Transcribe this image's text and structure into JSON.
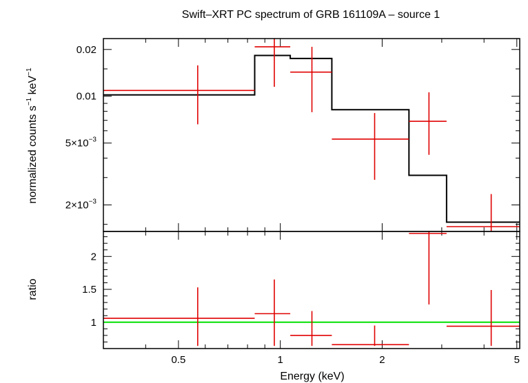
{
  "chart_data": {
    "type": "scatter",
    "title": "Swift–XRT PC spectrum of GRB 161109A – source 1",
    "xlabel": "Energy (keV)",
    "x_scale": "log",
    "x_range": [
      0.3,
      5.1
    ],
    "x_ticks": [
      {
        "value": 0.5,
        "label": "0.5"
      },
      {
        "value": 1,
        "label": "1"
      },
      {
        "value": 2,
        "label": "2"
      },
      {
        "value": 5,
        "label": "5"
      }
    ],
    "panels": [
      {
        "name": "spectrum",
        "ylabel_main": "normalized counts s",
        "ylabel_sup1": "−1",
        "ylabel_mid": " keV",
        "ylabel_sup2": "−1",
        "y_scale": "log",
        "y_range": [
          0.00135,
          0.0235
        ],
        "y_ticks": [
          {
            "value": 0.02,
            "label": "0.02"
          },
          {
            "value": 0.01,
            "label": "0.01"
          },
          {
            "value": 0.005,
            "base": "5×10",
            "exp": "−3"
          },
          {
            "value": 0.002,
            "base": "2×10",
            "exp": "−3"
          }
        ],
        "data": [
          {
            "xlo": 0.3,
            "xhi": 0.84,
            "x": 0.57,
            "y": 0.0109,
            "ylo": 0.0066,
            "yhi": 0.0158
          },
          {
            "xlo": 0.84,
            "xhi": 1.07,
            "x": 0.96,
            "y": 0.0208,
            "ylo": 0.0115,
            "yhi": 0.024
          },
          {
            "xlo": 1.07,
            "xhi": 1.42,
            "x": 1.24,
            "y": 0.0143,
            "ylo": 0.0079,
            "yhi": 0.0208
          },
          {
            "xlo": 1.42,
            "xhi": 2.4,
            "x": 1.9,
            "y": 0.0053,
            "ylo": 0.0029,
            "yhi": 0.0078
          },
          {
            "xlo": 2.4,
            "xhi": 3.1,
            "x": 2.75,
            "y": 0.0069,
            "ylo": 0.0042,
            "yhi": 0.0106
          },
          {
            "xlo": 3.1,
            "xhi": 5.1,
            "x": 4.2,
            "y": 0.00145,
            "ylo": 0.0009,
            "yhi": 0.00235
          }
        ],
        "model": [
          {
            "xlo": 0.3,
            "xhi": 0.84,
            "y": 0.0102
          },
          {
            "xlo": 0.84,
            "xhi": 1.07,
            "y": 0.0183
          },
          {
            "xlo": 1.07,
            "xhi": 1.42,
            "y": 0.0175
          },
          {
            "xlo": 1.42,
            "xhi": 2.4,
            "y": 0.0082
          },
          {
            "xlo": 2.4,
            "xhi": 3.1,
            "y": 0.0031
          },
          {
            "xlo": 3.1,
            "xhi": 5.1,
            "y": 0.00155
          }
        ]
      },
      {
        "name": "ratio",
        "ylabel": "ratio",
        "y_scale": "linear",
        "y_range": [
          0.6,
          2.38
        ],
        "y_ticks": [
          {
            "value": 1,
            "label": "1"
          },
          {
            "value": 1.5,
            "label": "1.5"
          },
          {
            "value": 2,
            "label": "2"
          }
        ],
        "reference_line": 1,
        "data": [
          {
            "xlo": 0.3,
            "xhi": 0.84,
            "x": 0.57,
            "y": 1.06,
            "ylo": 0.64,
            "yhi": 1.53
          },
          {
            "xlo": 0.84,
            "xhi": 1.07,
            "x": 0.96,
            "y": 1.13,
            "ylo": 0.64,
            "yhi": 1.65
          },
          {
            "xlo": 1.07,
            "xhi": 1.42,
            "x": 1.24,
            "y": 0.8,
            "ylo": 0.64,
            "yhi": 1.17
          },
          {
            "xlo": 1.42,
            "xhi": 2.4,
            "x": 1.9,
            "y": 0.66,
            "ylo": 0.64,
            "yhi": 0.95
          },
          {
            "xlo": 2.4,
            "xhi": 3.1,
            "x": 2.75,
            "y": 2.35,
            "ylo": 1.27,
            "yhi": 2.38
          },
          {
            "xlo": 3.1,
            "xhi": 5.1,
            "x": 4.2,
            "y": 0.94,
            "ylo": 0.64,
            "yhi": 1.49
          }
        ]
      }
    ],
    "colors": {
      "data": "#e00000",
      "model": "#000000",
      "reference": "#00e000",
      "axes": "#000000"
    }
  }
}
